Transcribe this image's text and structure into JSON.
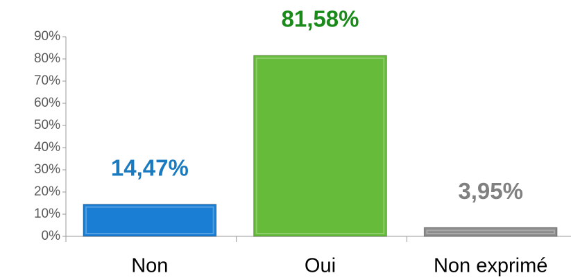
{
  "chart_data": {
    "type": "bar",
    "categories": [
      "Non",
      "Oui",
      "Non exprimé"
    ],
    "values": [
      14.47,
      81.58,
      3.95
    ],
    "value_labels": [
      "14,47%",
      "81,58%",
      "3,95%"
    ],
    "colors": [
      "#1a7fd4",
      "#66bb3a",
      "#8c8c8c"
    ],
    "label_colors": [
      "#1a7ac0",
      "#1a8a1a",
      "#808080"
    ],
    "ylim": [
      0,
      90
    ],
    "yticks": [
      {
        "value": 0,
        "label": "0%"
      },
      {
        "value": 10,
        "label": "10%"
      },
      {
        "value": 20,
        "label": "20%"
      },
      {
        "value": 30,
        "label": "30%"
      },
      {
        "value": 40,
        "label": "40%"
      },
      {
        "value": 50,
        "label": "50%"
      },
      {
        "value": 60,
        "label": "60%"
      },
      {
        "value": 70,
        "label": "70%"
      },
      {
        "value": 80,
        "label": "80%"
      },
      {
        "value": 90,
        "label": "90%"
      }
    ],
    "grid": false
  }
}
